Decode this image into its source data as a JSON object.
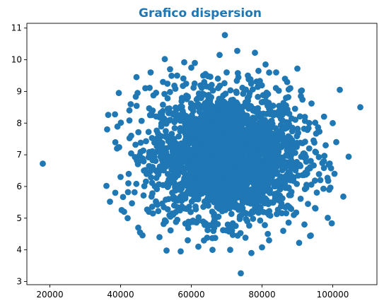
{
  "chart_data": {
    "type": "scatter",
    "title": "Grafico dispersion",
    "xlabel": "",
    "ylabel": "",
    "xlim": [
      13500,
      112500
    ],
    "ylim": [
      2.9,
      11.15
    ],
    "xticks": [
      20000,
      40000,
      60000,
      80000,
      100000
    ],
    "xtick_labels": [
      "20000",
      "40000",
      "60000",
      "80000",
      "100000"
    ],
    "yticks": [
      3,
      4,
      5,
      6,
      7,
      8,
      9,
      10,
      11
    ],
    "ytick_labels": [
      "3",
      "4",
      "5",
      "6",
      "7",
      "8",
      "9",
      "10",
      "11"
    ],
    "grid": false,
    "colors": {
      "points": "#1f77b4",
      "title": "#1f77b4",
      "axes": "#000000"
    },
    "series": [
      {
        "points": [
          [
            18000,
            6.72
          ],
          [
            36000,
            6.02
          ],
          [
            36200,
            7.8
          ],
          [
            36500,
            8.26
          ],
          [
            37000,
            5.52
          ],
          [
            38500,
            5.8
          ],
          [
            39000,
            7.2
          ],
          [
            39500,
            8.95
          ],
          [
            40000,
            6.3
          ],
          [
            41000,
            5.2
          ],
          [
            42000,
            5.0
          ],
          [
            42500,
            8.4
          ],
          [
            43000,
            7.6
          ],
          [
            44500,
            9.45
          ],
          [
            44800,
            8.95
          ],
          [
            45000,
            4.7
          ],
          [
            45500,
            4.55
          ],
          [
            47000,
            9.1
          ],
          [
            48000,
            5.2
          ],
          [
            48500,
            9.6
          ],
          [
            49000,
            7.0
          ],
          [
            50000,
            6.5
          ],
          [
            51000,
            4.4
          ],
          [
            52000,
            9.3
          ],
          [
            52500,
            10.02
          ],
          [
            53000,
            3.98
          ],
          [
            54000,
            9.7
          ],
          [
            55000,
            5.6
          ],
          [
            56000,
            9.5
          ],
          [
            57000,
            3.95
          ],
          [
            58000,
            9.92
          ],
          [
            59000,
            4.3
          ],
          [
            60000,
            9.75
          ],
          [
            61000,
            9.9
          ],
          [
            62000,
            4.1
          ],
          [
            64000,
            9.55
          ],
          [
            66000,
            4.0
          ],
          [
            68000,
            10.15
          ],
          [
            69500,
            10.78
          ],
          [
            70000,
            9.6
          ],
          [
            71000,
            4.0
          ],
          [
            73000,
            10.28
          ],
          [
            74000,
            3.26
          ],
          [
            76000,
            9.5
          ],
          [
            77000,
            3.9
          ],
          [
            78000,
            10.22
          ],
          [
            79000,
            9.65
          ],
          [
            80000,
            4.08
          ],
          [
            81000,
            9.85
          ],
          [
            82000,
            4.3
          ],
          [
            84000,
            9.6
          ],
          [
            86000,
            4.6
          ],
          [
            86500,
            9.4
          ],
          [
            88000,
            9.1
          ],
          [
            89000,
            5.1
          ],
          [
            90000,
            9.72
          ],
          [
            90500,
            4.22
          ],
          [
            91000,
            8.85
          ],
          [
            92000,
            4.8
          ],
          [
            93000,
            5.45
          ],
          [
            94000,
            8.62
          ],
          [
            96000,
            7.75
          ],
          [
            96500,
            6.2
          ],
          [
            97500,
            6.8
          ],
          [
            98000,
            7.3
          ],
          [
            99000,
            5.9
          ],
          [
            100000,
            8.0
          ],
          [
            100500,
            6.4
          ],
          [
            101000,
            7.4
          ],
          [
            102000,
            9.05
          ],
          [
            103000,
            5.68
          ],
          [
            104500,
            6.94
          ],
          [
            107800,
            8.5
          ]
        ]
      }
    ]
  }
}
